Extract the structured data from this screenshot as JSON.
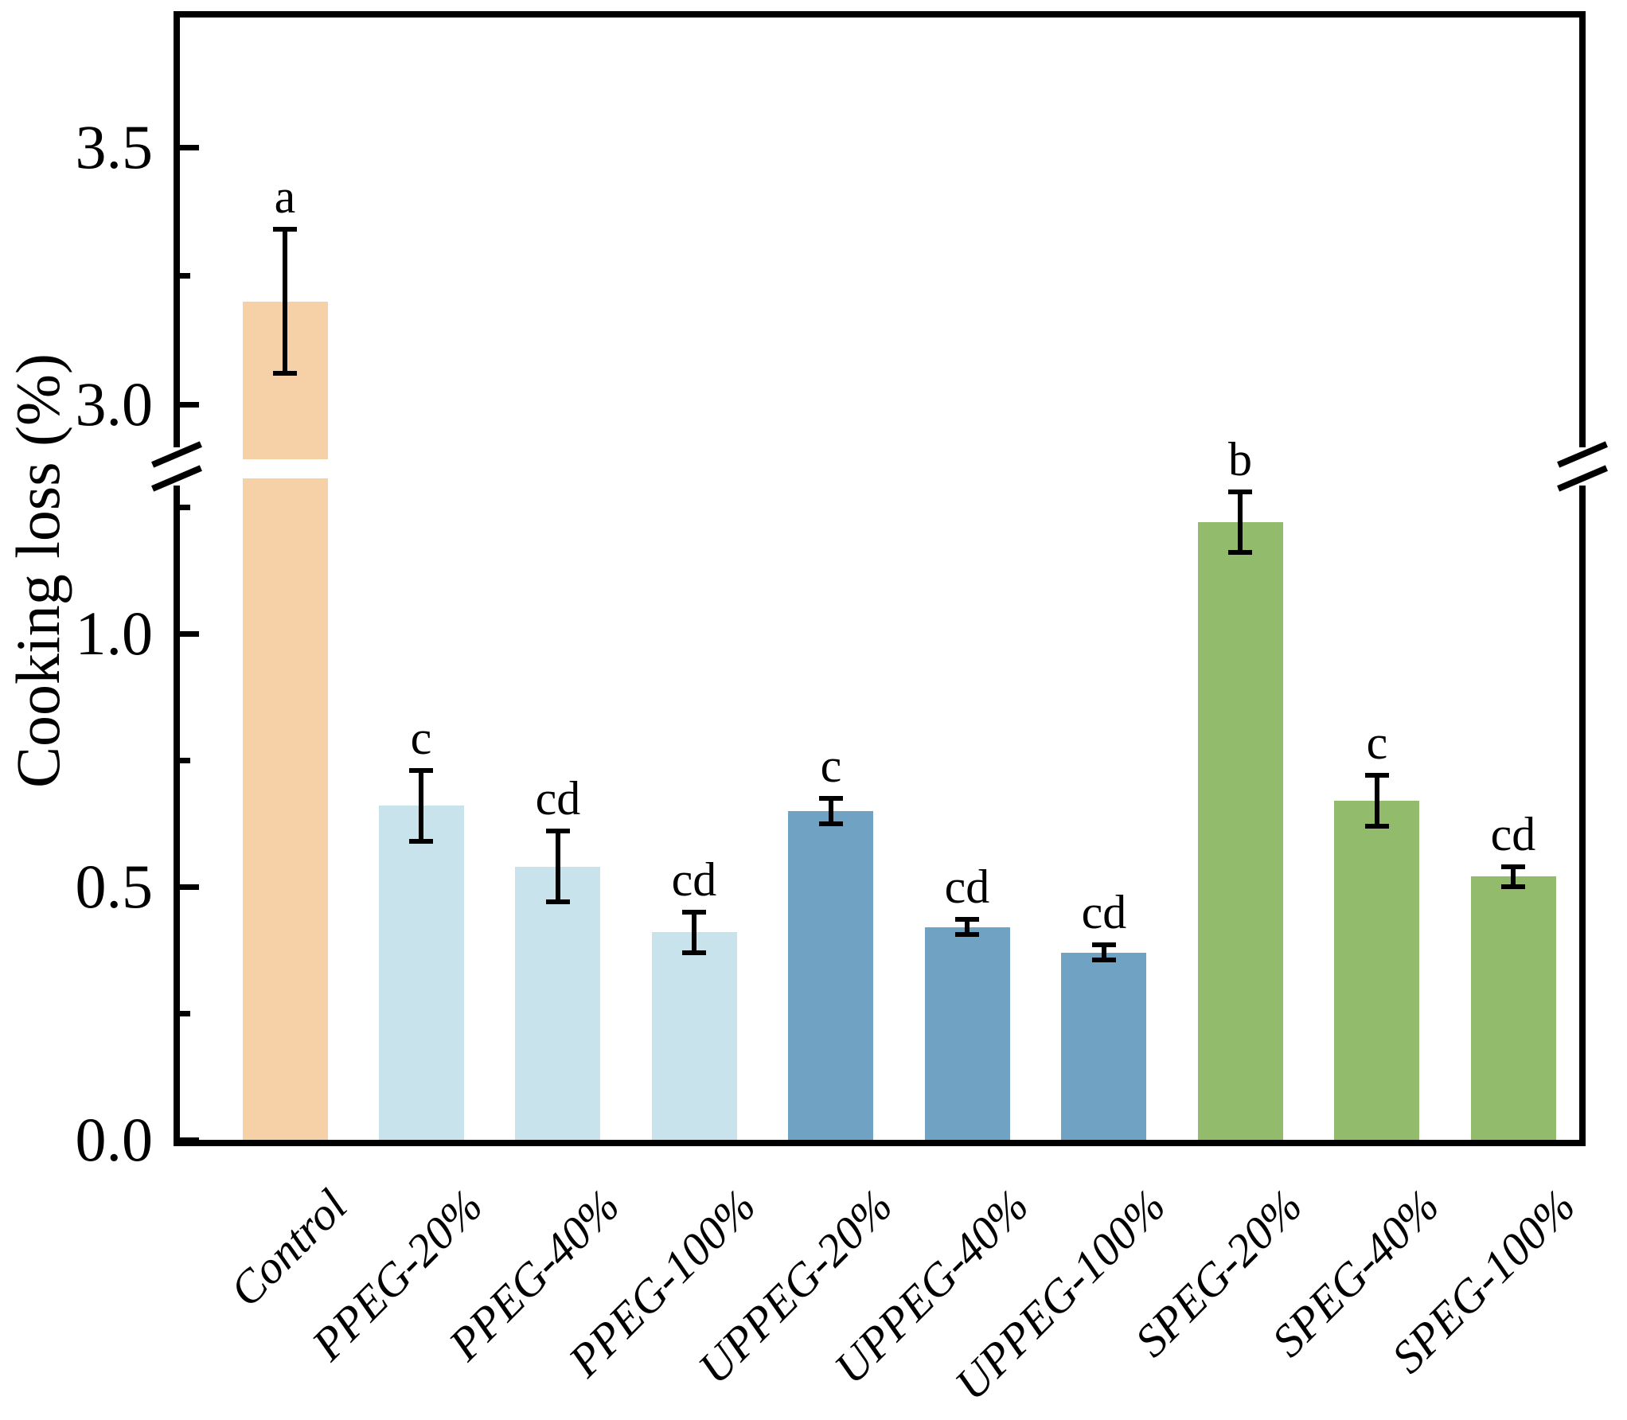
{
  "chart_data": {
    "type": "bar",
    "title": "",
    "xlabel": "",
    "ylabel": "Cooking loss (%)",
    "categories": [
      "Control",
      "PPEG-20%",
      "PPEG-40%",
      "PPEG-100%",
      "UPPEG-20%",
      "UPPEG-40%",
      "UPPEG-100%",
      "SPEG-20%",
      "SPEG-40%",
      "SPEG-100%"
    ],
    "values": [
      3.2,
      0.66,
      0.54,
      0.41,
      0.65,
      0.42,
      0.37,
      1.22,
      0.67,
      0.52
    ],
    "errors": [
      0.14,
      0.07,
      0.07,
      0.04,
      0.025,
      0.015,
      0.015,
      0.06,
      0.05,
      0.02
    ],
    "sig_letters": [
      "a",
      "c",
      "cd",
      "cd",
      "c",
      "cd",
      "cd",
      "b",
      "c",
      "cd"
    ],
    "bar_colors": [
      "#F6D1A7",
      "#C9E3EC",
      "#C9E3EC",
      "#C9E3EC",
      "#6FA2C3",
      "#6FA2C3",
      "#6FA2C3",
      "#92BB6C",
      "#92BB6C",
      "#92BB6C"
    ],
    "color_legend": {
      "control": "#F6D1A7",
      "ppeg_group": "#C9E3EC",
      "uppeg_group": "#6FA2C3",
      "speg_group": "#92BB6C"
    },
    "grid": false,
    "legend": null,
    "axis_break": {
      "lower_max": 1.33,
      "upper_min": 2.88
    },
    "ylim_segments": [
      [
        0.0,
        1.33
      ],
      [
        2.88,
        3.76
      ]
    ],
    "yaxis": {
      "major_ticks": [
        {
          "value": 0.0,
          "label": "0.0"
        },
        {
          "value": 0.5,
          "label": "0.5"
        },
        {
          "value": 1.0,
          "label": "1.0"
        },
        {
          "value": 3.0,
          "label": "3.0"
        },
        {
          "value": 3.5,
          "label": "3.5"
        }
      ],
      "minor_ticks": [
        0.25,
        0.75,
        1.25,
        3.25
      ]
    }
  }
}
